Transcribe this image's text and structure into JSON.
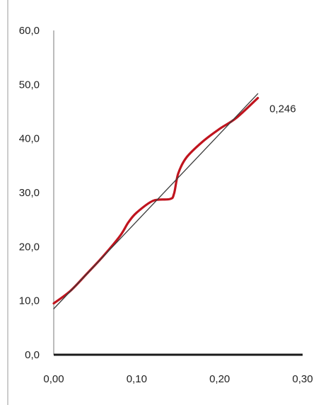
{
  "chart_data": {
    "type": "line",
    "title": "",
    "xlabel": "",
    "ylabel": "",
    "xlim": [
      0,
      0.3
    ],
    "ylim": [
      0,
      60
    ],
    "x_ticks": [
      {
        "value": 0.0,
        "label": "0,00"
      },
      {
        "value": 0.1,
        "label": "0,10"
      },
      {
        "value": 0.2,
        "label": "0,20"
      },
      {
        "value": 0.3,
        "label": "0,30"
      }
    ],
    "y_ticks": [
      {
        "value": 0,
        "label": "0,0"
      },
      {
        "value": 10,
        "label": "10,0"
      },
      {
        "value": 20,
        "label": "20,0"
      },
      {
        "value": 30,
        "label": "30,0"
      },
      {
        "value": 40,
        "label": "40,0"
      },
      {
        "value": 50,
        "label": "50,0"
      },
      {
        "value": 60,
        "label": "60,0"
      }
    ],
    "grid": false,
    "legend": "none",
    "series": [
      {
        "color": "#c0141e",
        "style": "smooth",
        "x": [
          0.0,
          0.02,
          0.04,
          0.06,
          0.08,
          0.09,
          0.1,
          0.12,
          0.14,
          0.145,
          0.15,
          0.16,
          0.18,
          0.2,
          0.22,
          0.246
        ],
        "y": [
          9.5,
          11.8,
          15.0,
          18.3,
          22.0,
          24.5,
          26.3,
          28.5,
          28.8,
          29.8,
          33.5,
          36.5,
          39.5,
          41.8,
          43.8,
          47.5
        ]
      },
      {
        "color": "#3a3a3a",
        "style": "straight",
        "x": [
          0.0,
          0.246
        ],
        "y": [
          8.5,
          48.3
        ]
      }
    ],
    "annotations": [
      {
        "text": "0,246",
        "x": 0.26,
        "y": 45.5
      }
    ]
  }
}
